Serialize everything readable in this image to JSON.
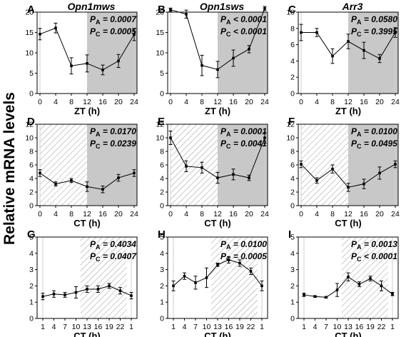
{
  "figure": {
    "ylabel": "Relative mRNA levels"
  },
  "chart_data": [
    {
      "letter": "A",
      "title": "Opn1mws",
      "xlabel": "ZT (h)",
      "xmode": "linear",
      "x": [
        0,
        4,
        8,
        12,
        16,
        20,
        24
      ],
      "xticks": [
        "0",
        "4",
        "8",
        "12",
        "16",
        "20",
        "24"
      ],
      "ylim": [
        0,
        20
      ],
      "yticks": [
        "0",
        "5",
        "10",
        "15",
        "20"
      ],
      "values": [
        14.6,
        16.1,
        6.8,
        7.4,
        5.8,
        8.0,
        14.5
      ],
      "errors": [
        1.4,
        1.2,
        2.0,
        2.1,
        1.2,
        1.6,
        1.5
      ],
      "shade": {
        "type": "gray",
        "from": 12,
        "to": 24
      },
      "stats": {
        "pa": "= 0.0007",
        "pc": "= 0.0005"
      }
    },
    {
      "letter": "B",
      "title": "Opn1sws",
      "xlabel": "ZT (h)",
      "xmode": "linear",
      "x": [
        0,
        4,
        8,
        12,
        16,
        20,
        24
      ],
      "xticks": [
        "0",
        "4",
        "8",
        "12",
        "16",
        "20",
        "24"
      ],
      "ylim": [
        0,
        20
      ],
      "yticks": [
        "0",
        "5",
        "10",
        "15",
        "20"
      ],
      "values": [
        20.6,
        19.5,
        6.9,
        5.9,
        8.7,
        10.9,
        20.9
      ],
      "errors": [
        0.4,
        1.0,
        2.5,
        2.0,
        2.0,
        0.9,
        0.5
      ],
      "shade": {
        "type": "gray",
        "from": 12,
        "to": 24
      },
      "stats": {
        "pa": "< 0.0001",
        "pc": "< 0.0001"
      }
    },
    {
      "letter": "C",
      "title": "Arr3",
      "xlabel": "ZT (h)",
      "xmode": "linear",
      "x": [
        0,
        4,
        8,
        12,
        16,
        20,
        24
      ],
      "xticks": [
        "0",
        "4",
        "8",
        "12",
        "16",
        "20",
        "24"
      ],
      "ylim": [
        0,
        10
      ],
      "yticks": [
        "0",
        "2",
        "4",
        "6",
        "8",
        "10"
      ],
      "values": [
        7.5,
        7.5,
        4.6,
        6.4,
        5.3,
        4.3,
        7.5
      ],
      "errors": [
        1.0,
        0.5,
        0.9,
        0.9,
        1.0,
        0.5,
        0.6
      ],
      "shade": {
        "type": "gray",
        "from": 12,
        "to": 24
      },
      "stats": {
        "pa": "= 0.0580",
        "pc": "= 0.3995"
      }
    },
    {
      "letter": "D",
      "title": "",
      "xlabel": "CT (h)",
      "xmode": "linear",
      "x": [
        0,
        4,
        8,
        12,
        16,
        20,
        24
      ],
      "xticks": [
        "0",
        "4",
        "8",
        "12",
        "16",
        "20",
        "24"
      ],
      "ylim": [
        0,
        12
      ],
      "yticks": [
        "0",
        "2",
        "4",
        "6",
        "8",
        "10",
        "12"
      ],
      "values": [
        4.8,
        3.2,
        3.7,
        2.8,
        2.4,
        4.1,
        4.8
      ],
      "errors": [
        0.5,
        0.3,
        0.3,
        0.7,
        0.5,
        0.5,
        0.5
      ],
      "shade": {
        "type": "split",
        "from": 12,
        "to": 24
      },
      "stats": {
        "pa": "= 0.0170",
        "pc": "= 0.0239"
      }
    },
    {
      "letter": "E",
      "title": "",
      "xlabel": "CT (h)",
      "xmode": "linear",
      "x": [
        0,
        4,
        8,
        12,
        16,
        20,
        24
      ],
      "xticks": [
        "0",
        "4",
        "8",
        "12",
        "16",
        "20",
        "24"
      ],
      "ylim": [
        0,
        12
      ],
      "yticks": [
        "0",
        "2",
        "4",
        "6",
        "8",
        "10",
        "12"
      ],
      "values": [
        10.0,
        5.8,
        5.6,
        4.1,
        4.6,
        4.1,
        10.0
      ],
      "errors": [
        1.0,
        0.8,
        0.8,
        0.8,
        0.8,
        0.4,
        0.8
      ],
      "shade": {
        "type": "split",
        "from": 12,
        "to": 24
      },
      "stats": {
        "pa": "= 0.0001",
        "pc": "= 0.0041"
      }
    },
    {
      "letter": "F",
      "title": "",
      "xlabel": "CT (h)",
      "xmode": "linear",
      "x": [
        0,
        4,
        8,
        12,
        16,
        20,
        24
      ],
      "xticks": [
        "0",
        "4",
        "8",
        "12",
        "16",
        "20",
        "24"
      ],
      "ylim": [
        0,
        12
      ],
      "yticks": [
        "0",
        "2",
        "4",
        "6",
        "8",
        "10",
        "12"
      ],
      "values": [
        6.1,
        3.7,
        5.4,
        2.7,
        3.2,
        4.8,
        6.1
      ],
      "errors": [
        0.5,
        0.4,
        0.6,
        0.6,
        0.7,
        0.9,
        0.5
      ],
      "shade": {
        "type": "split",
        "from": 12,
        "to": 24
      },
      "stats": {
        "pa": "= 0.0100",
        "pc": "= 0.0495"
      }
    },
    {
      "letter": "G",
      "title": "",
      "xlabel": "CT (h)",
      "xmode": "index",
      "x": [
        1,
        4,
        7,
        10,
        13,
        16,
        19,
        22,
        1
      ],
      "xticks": [
        "1",
        "4",
        "7",
        "10",
        "13",
        "16",
        "19",
        "22",
        "1"
      ],
      "ylim": [
        0,
        5
      ],
      "yticks": [
        "0",
        "1",
        "2",
        "3",
        "4",
        "5"
      ],
      "values": [
        1.35,
        1.5,
        1.45,
        1.6,
        1.8,
        1.8,
        2.0,
        1.7,
        1.4
      ],
      "errors": [
        0.2,
        0.2,
        0.15,
        0.35,
        0.2,
        0.2,
        0.15,
        0.2,
        0.2
      ],
      "shade": {
        "type": "hatch-band",
        "from_index": 3.4,
        "to_index": 7.6
      },
      "stats": {
        "pa": "= 0.4034",
        "pc": "= 0.0407"
      }
    },
    {
      "letter": "H",
      "title": "",
      "xlabel": "CT (h)",
      "xmode": "index",
      "x": [
        1,
        4,
        7,
        10,
        13,
        16,
        19,
        22,
        1
      ],
      "xticks": [
        "1",
        "4",
        "7",
        "10",
        "13",
        "16",
        "19",
        "22",
        "1"
      ],
      "ylim": [
        0,
        5
      ],
      "yticks": [
        "0",
        "1",
        "2",
        "3",
        "4",
        "5"
      ],
      "values": [
        2.0,
        2.6,
        2.2,
        2.5,
        3.3,
        3.6,
        3.4,
        2.9,
        2.0
      ],
      "errors": [
        0.3,
        0.2,
        0.4,
        0.6,
        0.1,
        0.2,
        0.2,
        0.2,
        0.3
      ],
      "shade": {
        "type": "hatch-band",
        "from_index": 3.4,
        "to_index": 7.6
      },
      "stats": {
        "pa": "= 0.0100",
        "pc": "= 0.0005"
      }
    },
    {
      "letter": "I",
      "title": "",
      "xlabel": "CT (h)",
      "xmode": "index",
      "x": [
        1,
        4,
        7,
        10,
        13,
        16,
        19,
        22,
        1
      ],
      "xticks": [
        "1",
        "4",
        "7",
        "10",
        "13",
        "16",
        "19",
        "22",
        "1"
      ],
      "ylim": [
        0,
        5
      ],
      "yticks": [
        "0",
        "1",
        "2",
        "3",
        "4",
        "5"
      ],
      "values": [
        1.45,
        1.35,
        1.3,
        1.75,
        2.55,
        2.1,
        2.45,
        2.0,
        1.5
      ],
      "errors": [
        0.1,
        0.05,
        0.05,
        0.4,
        0.25,
        0.15,
        0.15,
        0.3,
        0.1
      ],
      "shade": {
        "type": "hatch-band",
        "from_index": 3.4,
        "to_index": 7.6
      },
      "stats": {
        "pa": "= 0.0013",
        "pc": "< 0.0001"
      }
    }
  ]
}
